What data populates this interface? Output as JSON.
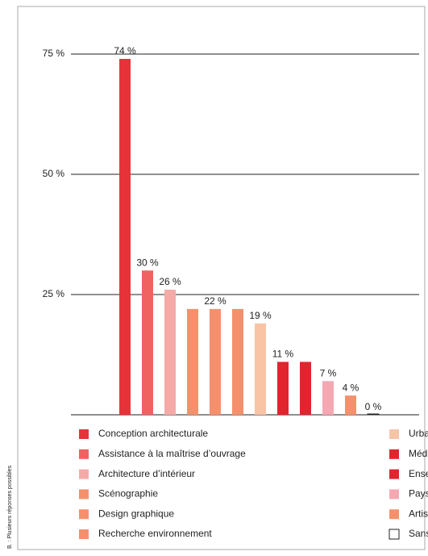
{
  "chart_data": {
    "type": "bar",
    "note": "B. : Plusieurs réponses possibles",
    "categories": [
      "Conception architecturale",
      "Assistance à la maîtrise d’ouvrage",
      "Architecture d’intérieur",
      "Scénographie",
      "Design graphique",
      "Recherche environnement",
      "Urbanisme",
      "Médiation",
      "Enseignement",
      "Paysage",
      "Artisanat",
      "Sans emploi"
    ],
    "values": [
      74,
      30,
      26,
      22,
      22,
      22,
      19,
      11,
      11,
      7,
      4,
      0
    ],
    "value_labels": [
      "74 %",
      "30 %",
      "26 %",
      null,
      "22 %",
      null,
      "19 %",
      "11 %",
      null,
      "7 %",
      "4 %",
      "0 %"
    ],
    "colors": [
      "#e8323a",
      "#f06262",
      "#f5aaa8",
      "#f4916c",
      "#f4916c",
      "#f4916c",
      "#f9c4a6",
      "#e2242e",
      "#e2242e",
      "#f5a8b2",
      "#f4916c",
      "#ffffff"
    ],
    "ylim": [
      0,
      75
    ],
    "yticks": [
      {
        "value": 25,
        "label": "25 %"
      },
      {
        "value": 50,
        "label": "50 %"
      },
      {
        "value": 75,
        "label": "75 %"
      }
    ],
    "grid": true
  }
}
